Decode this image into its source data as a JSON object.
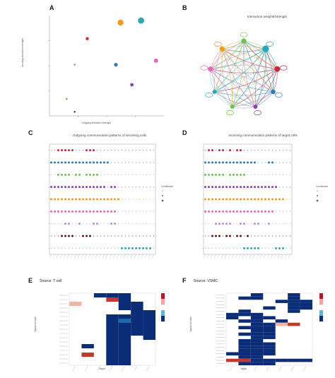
{
  "panels": {
    "a": {
      "label": "A",
      "xlabel": "Outgoing interaction strength",
      "ylabel": "Incoming interaction strength"
    },
    "b": {
      "label": "B",
      "title": "Interaction weights/strength"
    },
    "c": {
      "label": "C",
      "title": "Outgoing communication patterns of secreting cells",
      "legend_title": "Contribution"
    },
    "d": {
      "label": "D",
      "title": "Incoming communication patterns of target cells",
      "legend_title": "Contribution"
    },
    "e": {
      "label": "E",
      "title": "Source: T cell",
      "xlabel": "Target",
      "ylabel": "Ligand-receptor"
    },
    "f": {
      "label": "F",
      "title": "Source: VSMC",
      "xlabel": "Target",
      "ylabel": "Ligand-receptor"
    }
  },
  "colors": {
    "red": "#c9283b",
    "orange": "#f39a1f",
    "green": "#6cc24a",
    "teal": "#2aa9b5",
    "blue": "#2e7bb8",
    "purple": "#8a3fb0",
    "pink": "#e36ab5",
    "lilac": "#b98cd8",
    "magenta": "#c24fc4",
    "dark": "#2b1b1b",
    "navy": "#0a2a6e",
    "heat_hi": "#b2182b"
  },
  "chart_data": [
    {
      "id": "A",
      "type": "scatter",
      "xlabel": "Outgoing interaction strength",
      "ylabel": "Incoming interaction strength",
      "points": [
        {
          "x": 0.62,
          "y": 0.93,
          "size": 4.2,
          "color": "#f39a1f"
        },
        {
          "x": 0.8,
          "y": 0.95,
          "size": 4.4,
          "color": "#2aa9b5"
        },
        {
          "x": 0.33,
          "y": 0.77,
          "size": 2.2,
          "color": "#c9283b"
        },
        {
          "x": 0.93,
          "y": 0.55,
          "size": 3.0,
          "color": "#e36ab5"
        },
        {
          "x": 0.22,
          "y": 0.51,
          "size": 1.4,
          "color": "#b98cd8"
        },
        {
          "x": 0.58,
          "y": 0.51,
          "size": 2.6,
          "color": "#2e7bb8"
        },
        {
          "x": 0.72,
          "y": 0.31,
          "size": 2.4,
          "color": "#8a3fb0"
        },
        {
          "x": 0.15,
          "y": 0.17,
          "size": 1.4,
          "color": "#6cc24a"
        },
        {
          "x": 0.22,
          "y": 0.04,
          "size": 1.2,
          "color": "#2b1b1b"
        }
      ]
    },
    {
      "id": "B",
      "type": "network",
      "nodes": [
        {
          "color": "#6cc24a",
          "weight": 1.0
        },
        {
          "color": "#2aa9b5",
          "weight": 1.6
        },
        {
          "color": "#c9283b",
          "weight": 1.2
        },
        {
          "color": "#2e7bb8",
          "weight": 0.8
        },
        {
          "color": "#8a3fb0",
          "weight": 0.6
        },
        {
          "color": "#6cc24a",
          "weight": 0.6
        },
        {
          "color": "#2aa9b5",
          "weight": 0.6
        },
        {
          "color": "#e36ab5",
          "weight": 1.0
        },
        {
          "color": "#f39a1f",
          "weight": 1.0
        }
      ]
    },
    {
      "id": "C",
      "type": "scatter",
      "rows": [
        {
          "color": "#c9283b",
          "filled": [
            2,
            3,
            4,
            5,
            6,
            10,
            11,
            12
          ]
        },
        {
          "color": "#2e7bb8",
          "filled": [
            0,
            1,
            2,
            3,
            4,
            5,
            6,
            7,
            8,
            9,
            10,
            11,
            12,
            13,
            14,
            15,
            16
          ]
        },
        {
          "color": "#6cc24a",
          "filled": [
            2,
            3,
            4,
            5,
            7,
            8,
            10,
            11,
            12,
            13
          ]
        },
        {
          "color": "#8a3fb0",
          "filled": [
            0,
            1,
            2,
            3,
            4,
            5,
            6,
            7,
            8,
            9,
            10,
            11,
            12,
            13,
            14,
            15,
            17,
            18
          ]
        },
        {
          "color": "#f39a1f",
          "filled": [
            0,
            1,
            2,
            3,
            4,
            5,
            6,
            7,
            8,
            9,
            10,
            11,
            12,
            13,
            14,
            15,
            16,
            17,
            18,
            19
          ]
        },
        {
          "color": "#e36ab5",
          "filled": [
            0,
            1,
            2,
            3,
            4,
            5,
            6,
            7,
            8,
            9,
            10,
            11,
            12,
            13,
            14,
            15,
            16,
            17,
            18
          ]
        },
        {
          "color": "#b98cd8",
          "filled": [
            4,
            5,
            8,
            12,
            13,
            17,
            18
          ]
        },
        {
          "color": "#5a1a1a",
          "filled": [
            3,
            4,
            5,
            6,
            9,
            10,
            11
          ]
        },
        {
          "color": "#2aa9b5",
          "filled": [
            20,
            21,
            22,
            23,
            24,
            25,
            26,
            27,
            28
          ]
        }
      ]
    },
    {
      "id": "D",
      "type": "scatter",
      "rows": [
        {
          "color": "#c9283b",
          "filled": [
            1,
            2,
            4,
            5,
            7,
            9,
            10
          ]
        },
        {
          "color": "#2e7bb8",
          "filled": [
            0,
            1,
            2,
            3,
            4,
            5,
            6,
            7,
            8,
            9,
            10,
            11,
            12,
            13,
            14,
            18,
            19
          ]
        },
        {
          "color": "#6cc24a",
          "filled": [
            0,
            1,
            2,
            3,
            4,
            5,
            7,
            8,
            9,
            10,
            11
          ]
        },
        {
          "color": "#8a3fb0",
          "filled": [
            0,
            1,
            2,
            3,
            4,
            5,
            6,
            7,
            8,
            9,
            10,
            11,
            12,
            13,
            14,
            15,
            16,
            17,
            18,
            19,
            20
          ]
        },
        {
          "color": "#f39a1f",
          "filled": [
            0,
            1,
            2,
            3,
            4,
            5,
            6,
            7,
            8,
            9,
            10,
            11,
            12,
            13,
            14,
            15,
            16,
            17,
            18,
            19,
            20,
            21,
            22
          ]
        },
        {
          "color": "#e36ab5",
          "filled": [
            0,
            1,
            2,
            3,
            4,
            5,
            6,
            7,
            8,
            9,
            10,
            11,
            12,
            13,
            14,
            15,
            16,
            17,
            18,
            19
          ]
        },
        {
          "color": "#b98cd8",
          "filled": [
            3,
            4,
            5,
            6,
            7,
            10,
            11,
            14,
            15,
            18
          ]
        },
        {
          "color": "#5a1a1a",
          "filled": [
            2,
            3,
            4,
            6,
            7,
            9,
            10,
            12
          ]
        },
        {
          "color": "#2aa9b5",
          "filled": [
            11,
            12,
            13,
            14,
            15,
            20,
            21,
            22
          ]
        }
      ]
    },
    {
      "id": "E",
      "type": "heatmap",
      "xlabel": "Target",
      "ylabel": "Ligand-receptor",
      "cells": [
        {
          "r": 0,
          "c": 2,
          "v": 0.85
        },
        {
          "r": 0,
          "c": 3,
          "v": 0.85
        },
        {
          "r": 0,
          "c": 4,
          "v": 0.9
        },
        {
          "r": 1,
          "c": 3,
          "v": 0.15
        },
        {
          "r": 1,
          "c": 4,
          "v": 0.85
        },
        {
          "r": 2,
          "c": 0,
          "v": 0.45
        },
        {
          "r": 2,
          "c": 4,
          "v": 0.85
        },
        {
          "r": 2,
          "c": 5,
          "v": 0.85
        },
        {
          "r": 3,
          "c": 4,
          "v": 0.85
        },
        {
          "r": 3,
          "c": 5,
          "v": 0.85
        },
        {
          "r": 4,
          "c": 5,
          "v": 0.85
        },
        {
          "r": 4,
          "c": 6,
          "v": 0.85
        },
        {
          "r": 5,
          "c": 3,
          "v": 0.85
        },
        {
          "r": 5,
          "c": 4,
          "v": 0.85
        },
        {
          "r": 5,
          "c": 5,
          "v": 0.85
        },
        {
          "r": 5,
          "c": 6,
          "v": 0.85
        },
        {
          "r": 6,
          "c": 3,
          "v": 0.9
        },
        {
          "r": 6,
          "c": 4,
          "v": 0.75
        },
        {
          "r": 6,
          "c": 5,
          "v": 0.85
        },
        {
          "r": 6,
          "c": 6,
          "v": 0.9
        },
        {
          "r": 7,
          "c": 3,
          "v": 0.85
        },
        {
          "r": 7,
          "c": 4,
          "v": 0.85
        },
        {
          "r": 7,
          "c": 5,
          "v": 0.85
        },
        {
          "r": 7,
          "c": 6,
          "v": 0.85
        },
        {
          "r": 8,
          "c": 3,
          "v": 0.85
        },
        {
          "r": 8,
          "c": 4,
          "v": 0.9
        },
        {
          "r": 8,
          "c": 5,
          "v": 0.85
        },
        {
          "r": 8,
          "c": 6,
          "v": 0.85
        },
        {
          "r": 9,
          "c": 3,
          "v": 0.85
        },
        {
          "r": 9,
          "c": 4,
          "v": 0.85
        },
        {
          "r": 9,
          "c": 5,
          "v": 0.85
        },
        {
          "r": 9,
          "c": 6,
          "v": 0.85
        },
        {
          "r": 10,
          "c": 3,
          "v": 0.85
        },
        {
          "r": 10,
          "c": 4,
          "v": 0.85
        },
        {
          "r": 10,
          "c": 6,
          "v": 0.85
        },
        {
          "r": 11,
          "c": 3,
          "v": 0.85
        },
        {
          "r": 11,
          "c": 4,
          "v": 0.9
        },
        {
          "r": 12,
          "c": 1,
          "v": 0.85
        },
        {
          "r": 12,
          "c": 3,
          "v": 0.85
        },
        {
          "r": 12,
          "c": 4,
          "v": 0.85
        },
        {
          "r": 13,
          "c": 3,
          "v": 0.85
        },
        {
          "r": 13,
          "c": 4,
          "v": 0.85
        },
        {
          "r": 14,
          "c": 1,
          "v": 0.15
        },
        {
          "r": 14,
          "c": 3,
          "v": 0.85
        },
        {
          "r": 14,
          "c": 4,
          "v": 0.85
        },
        {
          "r": 15,
          "c": 3,
          "v": 0.85
        },
        {
          "r": 15,
          "c": 4,
          "v": 0.85
        },
        {
          "r": 16,
          "c": 3,
          "v": 0.85
        },
        {
          "r": 16,
          "c": 4,
          "v": 0.85
        }
      ],
      "rows": 17,
      "cols": 7
    },
    {
      "id": "F",
      "type": "heatmap",
      "xlabel": "Target",
      "ylabel": "Ligand-receptor",
      "cells": [
        {
          "r": 0,
          "c": 2,
          "v": 0.85
        },
        {
          "r": 0,
          "c": 5,
          "v": 0.85
        },
        {
          "r": 1,
          "c": 1,
          "v": 0.85
        },
        {
          "r": 1,
          "c": 2,
          "v": 0.85
        },
        {
          "r": 1,
          "c": 5,
          "v": 0.85
        },
        {
          "r": 2,
          "c": 4,
          "v": 0.85
        },
        {
          "r": 2,
          "c": 5,
          "v": 0.85
        },
        {
          "r": 2,
          "c": 6,
          "v": 0.85
        },
        {
          "r": 3,
          "c": 5,
          "v": 0.85
        },
        {
          "r": 3,
          "c": 6,
          "v": 0.85
        },
        {
          "r": 4,
          "c": 3,
          "v": 0.85
        },
        {
          "r": 4,
          "c": 5,
          "v": 0.85
        },
        {
          "r": 4,
          "c": 6,
          "v": 0.85
        },
        {
          "r": 5,
          "c": 1,
          "v": 0.85
        },
        {
          "r": 5,
          "c": 5,
          "v": 0.85
        },
        {
          "r": 6,
          "c": 0,
          "v": 0.85
        },
        {
          "r": 6,
          "c": 1,
          "v": 0.85
        },
        {
          "r": 6,
          "c": 2,
          "v": 0.85
        },
        {
          "r": 7,
          "c": 0,
          "v": 0.85
        },
        {
          "r": 7,
          "c": 2,
          "v": 0.85
        },
        {
          "r": 7,
          "c": 3,
          "v": 0.85
        },
        {
          "r": 8,
          "c": 1,
          "v": 0.85
        },
        {
          "r": 8,
          "c": 2,
          "v": 0.85
        },
        {
          "r": 8,
          "c": 4,
          "v": 0.85
        },
        {
          "r": 9,
          "c": 2,
          "v": 0.85
        },
        {
          "r": 9,
          "c": 3,
          "v": 0.85
        },
        {
          "r": 9,
          "c": 4,
          "v": 0.5
        },
        {
          "r": 9,
          "c": 5,
          "v": 0.15
        },
        {
          "r": 10,
          "c": 1,
          "v": 0.85
        },
        {
          "r": 10,
          "c": 2,
          "v": 0.85
        },
        {
          "r": 10,
          "c": 3,
          "v": 0.85
        },
        {
          "r": 11,
          "c": 2,
          "v": 0.85
        },
        {
          "r": 11,
          "c": 3,
          "v": 0.85
        },
        {
          "r": 12,
          "c": 1,
          "v": 0.85
        },
        {
          "r": 12,
          "c": 2,
          "v": 0.85
        },
        {
          "r": 12,
          "c": 3,
          "v": 0.85
        },
        {
          "r": 13,
          "c": 2,
          "v": 0.85
        },
        {
          "r": 13,
          "c": 3,
          "v": 0.85
        },
        {
          "r": 14,
          "c": 1,
          "v": 0.85
        },
        {
          "r": 14,
          "c": 2,
          "v": 0.85
        },
        {
          "r": 15,
          "c": 1,
          "v": 0.85
        },
        {
          "r": 15,
          "c": 2,
          "v": 0.85
        },
        {
          "r": 15,
          "c": 3,
          "v": 0.85
        },
        {
          "r": 16,
          "c": 1,
          "v": 0.85
        },
        {
          "r": 16,
          "c": 2,
          "v": 0.85
        },
        {
          "r": 16,
          "c": 3,
          "v": 0.85
        },
        {
          "r": 17,
          "c": 1,
          "v": 0.85
        },
        {
          "r": 17,
          "c": 2,
          "v": 0.85
        },
        {
          "r": 17,
          "c": 3,
          "v": 0.85
        },
        {
          "r": 18,
          "c": 0,
          "v": 0.85
        },
        {
          "r": 18,
          "c": 1,
          "v": 0.85
        },
        {
          "r": 18,
          "c": 2,
          "v": 0.85
        },
        {
          "r": 18,
          "c": 3,
          "v": 0.85
        },
        {
          "r": 19,
          "c": 1,
          "v": 0.85
        },
        {
          "r": 19,
          "c": 2,
          "v": 0.85
        },
        {
          "r": 20,
          "c": 0,
          "v": 0.15
        },
        {
          "r": 20,
          "c": 1,
          "v": 0.1
        },
        {
          "r": 20,
          "c": 2,
          "v": 0.85
        },
        {
          "r": 20,
          "c": 3,
          "v": 0.85
        },
        {
          "r": 20,
          "c": 4,
          "v": 0.85
        },
        {
          "r": 20,
          "c": 5,
          "v": 0.85
        },
        {
          "r": 20,
          "c": 6,
          "v": 0.85
        },
        {
          "r": 21,
          "c": 1,
          "v": 0.85
        },
        {
          "r": 21,
          "c": 2,
          "v": 0.85
        },
        {
          "r": 21,
          "c": 3,
          "v": 0.85
        }
      ],
      "rows": 22,
      "cols": 7
    }
  ]
}
